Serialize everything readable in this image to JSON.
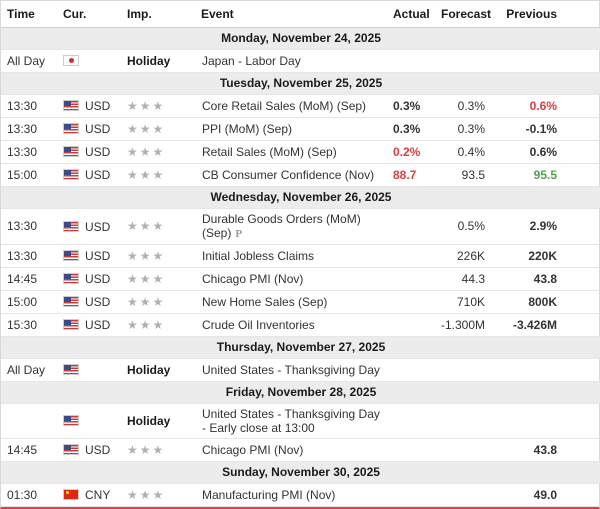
{
  "colors": {
    "red": "#d9403f",
    "green": "#4ea44e",
    "black": "#222222",
    "day_bg": "#ececec",
    "row_border": "#e6e6e6",
    "star": "#b0b0b0"
  },
  "header": {
    "time": "Time",
    "cur": "Cur.",
    "imp": "Imp.",
    "event": "Event",
    "actual": "Actual",
    "forecast": "Forecast",
    "previous": "Previous"
  },
  "rows": [
    {
      "type": "day",
      "label": "Monday, November 24, 2025"
    },
    {
      "type": "event",
      "time": "All Day",
      "flag": "jp",
      "currency": "",
      "holiday": true,
      "importance": "Holiday",
      "event": "Japan - Labor Day"
    },
    {
      "type": "day",
      "label": "Tuesday, November 25, 2025"
    },
    {
      "type": "event",
      "time": "13:30",
      "flag": "us",
      "currency": "USD",
      "stars": 3,
      "event": "Core Retail Sales (MoM) (Sep)",
      "actual": {
        "value": "0.3%",
        "bold": true
      },
      "forecast": {
        "value": "0.3%"
      },
      "previous": {
        "value": "0.6%",
        "color": "red",
        "bold": true
      }
    },
    {
      "type": "event",
      "time": "13:30",
      "flag": "us",
      "currency": "USD",
      "stars": 3,
      "event": "PPI (MoM) (Sep)",
      "actual": {
        "value": "0.3%",
        "bold": true
      },
      "forecast": {
        "value": "0.3%"
      },
      "previous": {
        "value": "-0.1%",
        "bold": true
      }
    },
    {
      "type": "event",
      "time": "13:30",
      "flag": "us",
      "currency": "USD",
      "stars": 3,
      "event": "Retail Sales (MoM) (Sep)",
      "actual": {
        "value": "0.2%",
        "color": "red",
        "bold": true
      },
      "forecast": {
        "value": "0.4%"
      },
      "previous": {
        "value": "0.6%",
        "bold": true
      }
    },
    {
      "type": "event",
      "time": "15:00",
      "flag": "us",
      "currency": "USD",
      "stars": 3,
      "event": "CB Consumer Confidence (Nov)",
      "actual": {
        "value": "88.7",
        "color": "red",
        "bold": true
      },
      "forecast": {
        "value": "93.5"
      },
      "previous": {
        "value": "95.5",
        "color": "green",
        "bold": true
      }
    },
    {
      "type": "day",
      "label": "Wednesday, November 26, 2025"
    },
    {
      "type": "event",
      "time": "13:30",
      "flag": "us",
      "currency": "USD",
      "stars": 3,
      "event": "Durable Goods Orders (MoM) (Sep)",
      "preliminary": "P",
      "tall": true,
      "forecast": {
        "value": "0.5%"
      },
      "previous": {
        "value": "2.9%",
        "bold": true
      }
    },
    {
      "type": "event",
      "time": "13:30",
      "flag": "us",
      "currency": "USD",
      "stars": 3,
      "event": "Initial Jobless Claims",
      "forecast": {
        "value": "226K"
      },
      "previous": {
        "value": "220K",
        "bold": true
      }
    },
    {
      "type": "event",
      "time": "14:45",
      "flag": "us",
      "currency": "USD",
      "stars": 3,
      "event": "Chicago PMI (Nov)",
      "forecast": {
        "value": "44.3"
      },
      "previous": {
        "value": "43.8",
        "bold": true
      }
    },
    {
      "type": "event",
      "time": "15:00",
      "flag": "us",
      "currency": "USD",
      "stars": 3,
      "event": "New Home Sales (Sep)",
      "forecast": {
        "value": "710K"
      },
      "previous": {
        "value": "800K",
        "bold": true
      }
    },
    {
      "type": "event",
      "time": "15:30",
      "flag": "us",
      "currency": "USD",
      "stars": 3,
      "event": "Crude Oil Inventories",
      "forecast": {
        "value": "-1.300M"
      },
      "previous": {
        "value": "-3.426M",
        "bold": true
      }
    },
    {
      "type": "day",
      "label": "Thursday, November 27, 2025"
    },
    {
      "type": "event",
      "time": "All Day",
      "flag": "us",
      "currency": "",
      "holiday": true,
      "importance": "Holiday",
      "event": "United States - Thanksgiving Day"
    },
    {
      "type": "day",
      "label": "Friday, November 28, 2025"
    },
    {
      "type": "event",
      "time": "",
      "flag": "us",
      "currency": "",
      "holiday": true,
      "importance": "Holiday",
      "event": "United States - Thanksgiving Day - Early close at 13:00"
    },
    {
      "type": "event",
      "time": "14:45",
      "flag": "us",
      "currency": "USD",
      "stars": 3,
      "event": "Chicago PMI (Nov)",
      "previous": {
        "value": "43.8",
        "bold": true
      }
    },
    {
      "type": "day",
      "label": "Sunday, November 30, 2025"
    },
    {
      "type": "event",
      "time": "01:30",
      "flag": "cn",
      "currency": "CNY",
      "stars": 3,
      "event": "Manufacturing PMI (Nov)",
      "previous": {
        "value": "49.0",
        "bold": true
      }
    }
  ]
}
